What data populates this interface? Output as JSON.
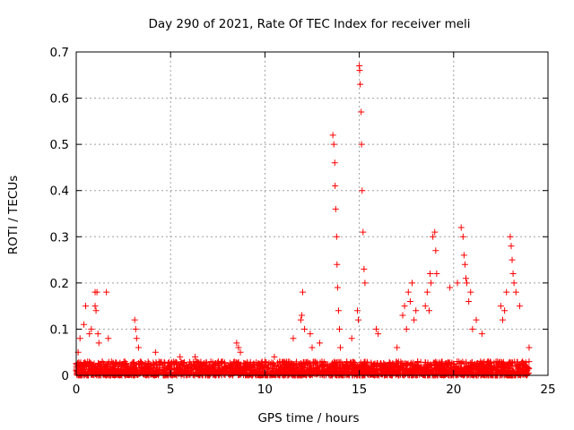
{
  "chart_data": {
    "type": "scatter",
    "title": "Day 290 of 2021, Rate Of TEC Index for receiver meli",
    "xlabel": "GPS time / hours",
    "ylabel": "ROTI / TECUs",
    "xlim": [
      0,
      25
    ],
    "ylim": [
      0,
      0.7
    ],
    "xticks": [
      0,
      5,
      10,
      15,
      20,
      25
    ],
    "yticks": [
      0,
      0.1,
      0.2,
      0.3,
      0.4,
      0.5,
      0.6,
      0.7
    ],
    "xtick_labels": [
      "0",
      "5",
      "10",
      "15",
      "20",
      "25"
    ],
    "ytick_labels": [
      "0",
      "0.1",
      "0.2",
      "0.3",
      "0.4",
      "0.5",
      "0.6",
      "0.7"
    ],
    "grid": true,
    "marker": "plus",
    "color": "#ff0000",
    "baseline_range": [
      0.0,
      0.03
    ],
    "points": {
      "x": [
        0.1,
        0.2,
        0.4,
        0.5,
        0.7,
        0.8,
        1.0,
        1.0,
        1.05,
        1.1,
        1.15,
        1.2,
        1.6,
        1.7,
        3.1,
        3.15,
        3.2,
        3.3,
        4.2,
        5.5,
        6.3,
        8.5,
        8.6,
        8.7,
        10.5,
        11.5,
        11.9,
        11.95,
        12.0,
        12.1,
        12.4,
        12.5,
        12.9,
        13.6,
        13.65,
        13.7,
        13.72,
        13.75,
        13.8,
        13.82,
        13.85,
        13.9,
        13.95,
        14.0,
        14.6,
        14.9,
        14.95,
        15.0,
        15.02,
        15.05,
        15.1,
        15.12,
        15.15,
        15.2,
        15.25,
        15.3,
        15.9,
        16.0,
        17.0,
        17.3,
        17.4,
        17.5,
        17.6,
        17.7,
        17.8,
        17.9,
        18.0,
        18.5,
        18.6,
        18.7,
        18.75,
        18.8,
        18.9,
        19.0,
        19.05,
        19.1,
        19.8,
        20.2,
        20.4,
        20.5,
        20.55,
        20.6,
        20.65,
        20.7,
        20.8,
        20.9,
        21.0,
        21.2,
        21.5,
        22.5,
        22.6,
        22.7,
        22.8,
        23.0,
        23.05,
        23.1,
        23.15,
        23.2,
        23.3,
        23.5,
        24.0
      ],
      "y": [
        0.05,
        0.08,
        0.11,
        0.15,
        0.09,
        0.1,
        0.15,
        0.18,
        0.14,
        0.18,
        0.09,
        0.07,
        0.18,
        0.08,
        0.12,
        0.1,
        0.08,
        0.06,
        0.05,
        0.04,
        0.04,
        0.07,
        0.06,
        0.05,
        0.04,
        0.08,
        0.12,
        0.13,
        0.18,
        0.1,
        0.09,
        0.06,
        0.07,
        0.52,
        0.5,
        0.46,
        0.41,
        0.36,
        0.3,
        0.24,
        0.19,
        0.14,
        0.1,
        0.06,
        0.08,
        0.14,
        0.12,
        0.67,
        0.66,
        0.63,
        0.57,
        0.5,
        0.4,
        0.31,
        0.23,
        0.2,
        0.1,
        0.09,
        0.06,
        0.13,
        0.15,
        0.1,
        0.18,
        0.16,
        0.2,
        0.12,
        0.14,
        0.15,
        0.18,
        0.14,
        0.22,
        0.2,
        0.3,
        0.31,
        0.27,
        0.22,
        0.19,
        0.2,
        0.32,
        0.3,
        0.26,
        0.24,
        0.21,
        0.2,
        0.16,
        0.18,
        0.1,
        0.12,
        0.09,
        0.15,
        0.12,
        0.14,
        0.18,
        0.3,
        0.28,
        0.25,
        0.22,
        0.2,
        0.18,
        0.15,
        0.06
      ]
    }
  }
}
